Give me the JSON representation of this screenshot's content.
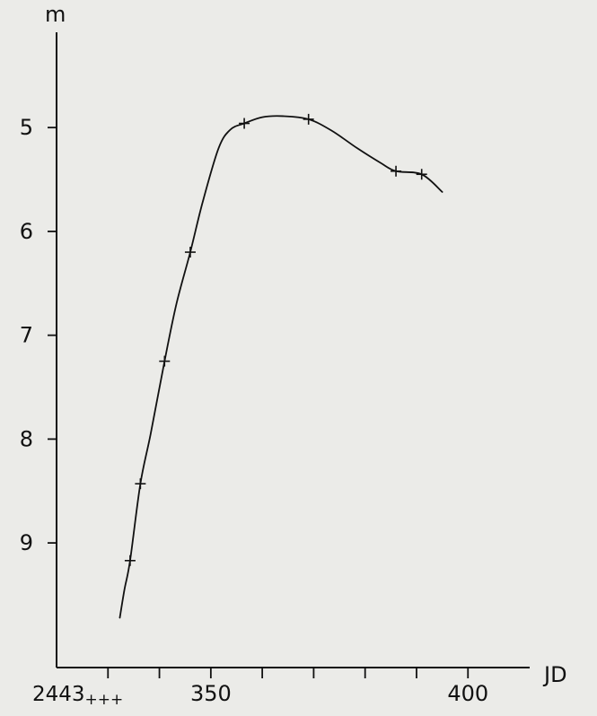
{
  "chart_data": {
    "type": "line",
    "xlabel": "JD",
    "ylabel": "m",
    "x_tick_labels": [
      {
        "x": 350,
        "label": "350"
      },
      {
        "x": 400,
        "label": "400"
      }
    ],
    "x_epoch_prefix": "2443",
    "x_epoch_suffix": "+++",
    "x_minor_ticks": [
      330,
      340,
      350,
      360,
      370,
      380,
      390,
      400
    ],
    "y_ticks": [
      5,
      6,
      7,
      8,
      9
    ],
    "xlim": [
      320,
      412
    ],
    "ylim": [
      10.2,
      4.1
    ],
    "grid": false,
    "series": [
      {
        "points": [
          {
            "x": 334.3,
            "y": 9.17
          },
          {
            "x": 336.3,
            "y": 8.43
          },
          {
            "x": 341.0,
            "y": 7.25
          },
          {
            "x": 346.0,
            "y": 6.2
          },
          {
            "x": 356.5,
            "y": 4.96
          },
          {
            "x": 369.0,
            "y": 4.92
          },
          {
            "x": 386.0,
            "y": 5.42
          },
          {
            "x": 391.0,
            "y": 5.45
          }
        ],
        "curve": [
          {
            "x": 332.3,
            "y": 9.72
          },
          {
            "x": 333.2,
            "y": 9.45
          },
          {
            "x": 334.3,
            "y": 9.17
          },
          {
            "x": 336.3,
            "y": 8.43
          },
          {
            "x": 338.3,
            "y": 7.95
          },
          {
            "x": 341.0,
            "y": 7.25
          },
          {
            "x": 343.3,
            "y": 6.7
          },
          {
            "x": 346.0,
            "y": 6.2
          },
          {
            "x": 348.4,
            "y": 5.72
          },
          {
            "x": 351.5,
            "y": 5.2
          },
          {
            "x": 353.8,
            "y": 5.02
          },
          {
            "x": 356.5,
            "y": 4.96
          },
          {
            "x": 360.0,
            "y": 4.9
          },
          {
            "x": 364.0,
            "y": 4.89
          },
          {
            "x": 369.0,
            "y": 4.92
          },
          {
            "x": 373.5,
            "y": 5.03
          },
          {
            "x": 378.5,
            "y": 5.2
          },
          {
            "x": 383.0,
            "y": 5.34
          },
          {
            "x": 386.0,
            "y": 5.42
          },
          {
            "x": 391.0,
            "y": 5.45
          },
          {
            "x": 395.0,
            "y": 5.62
          }
        ]
      }
    ]
  }
}
